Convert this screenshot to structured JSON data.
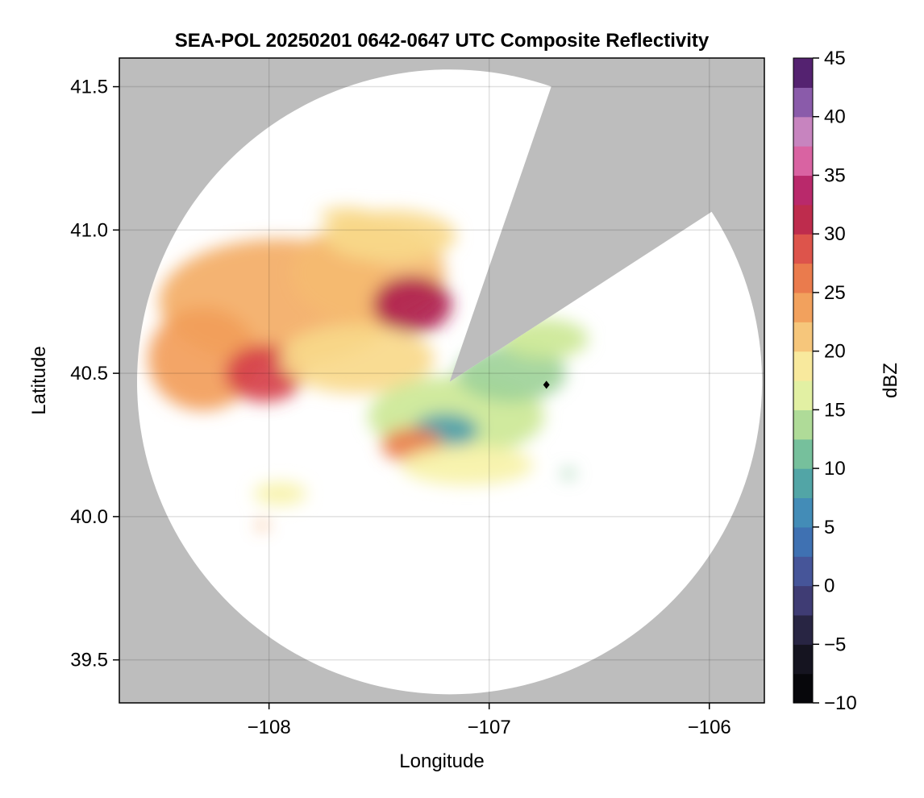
{
  "chart_data": {
    "type": "heatmap",
    "title": "SEA-POL 20250201 0642-0647 UTC Composite Reflectivity",
    "xlabel": "Longitude",
    "ylabel": "Latitude",
    "xlim": [
      -108.68,
      -105.75
    ],
    "ylim": [
      39.35,
      41.6
    ],
    "x_ticks": [
      {
        "value": -108,
        "label": "−108"
      },
      {
        "value": -107,
        "label": "−107"
      },
      {
        "value": -106,
        "label": "−106"
      }
    ],
    "y_ticks": [
      {
        "value": 39.5,
        "label": "39.5"
      },
      {
        "value": 40.0,
        "label": "40.0"
      },
      {
        "value": 40.5,
        "label": "40.5"
      },
      {
        "value": 41.0,
        "label": "41.0"
      },
      {
        "value": 41.5,
        "label": "41.5"
      }
    ],
    "grid": true,
    "background_color": "#bdbdbd",
    "no_echo_color": "#ffffff",
    "radar": {
      "lon": -107.18,
      "lat": 40.47,
      "range_deg_lat": 1.09
    },
    "blocked_sectors_deg_from_north": [
      [
        19,
        57
      ]
    ],
    "marker": {
      "lon": -106.74,
      "lat": 40.46,
      "shape": "diamond",
      "color": "#000000"
    },
    "echo_regions": [
      {
        "lon": -107.95,
        "lat": 40.75,
        "rx": 0.55,
        "ry": 0.22,
        "dbz": 23
      },
      {
        "lon": -108.3,
        "lat": 40.55,
        "rx": 0.25,
        "ry": 0.18,
        "dbz": 24
      },
      {
        "lon": -108.02,
        "lat": 40.5,
        "rx": 0.18,
        "ry": 0.1,
        "dbz": 30
      },
      {
        "lon": -107.55,
        "lat": 40.85,
        "rx": 0.35,
        "ry": 0.18,
        "dbz": 22
      },
      {
        "lon": -107.35,
        "lat": 40.74,
        "rx": 0.18,
        "ry": 0.1,
        "dbz": 32
      },
      {
        "lon": -107.45,
        "lat": 40.98,
        "rx": 0.3,
        "ry": 0.09,
        "dbz": 20
      },
      {
        "lon": -107.6,
        "lat": 40.55,
        "rx": 0.35,
        "ry": 0.12,
        "dbz": 20
      },
      {
        "lon": -107.15,
        "lat": 40.35,
        "rx": 0.4,
        "ry": 0.14,
        "dbz": 15
      },
      {
        "lon": -107.2,
        "lat": 40.3,
        "rx": 0.15,
        "ry": 0.06,
        "dbz": 8
      },
      {
        "lon": -107.35,
        "lat": 40.25,
        "rx": 0.14,
        "ry": 0.06,
        "dbz": 26
      },
      {
        "lon": -106.9,
        "lat": 40.5,
        "rx": 0.25,
        "ry": 0.1,
        "dbz": 13
      },
      {
        "lon": -106.75,
        "lat": 40.62,
        "rx": 0.2,
        "ry": 0.07,
        "dbz": 15
      },
      {
        "lon": -107.1,
        "lat": 40.18,
        "rx": 0.3,
        "ry": 0.07,
        "dbz": 18
      },
      {
        "lon": -107.95,
        "lat": 40.08,
        "rx": 0.12,
        "ry": 0.04,
        "dbz": 18
      },
      {
        "lon": -108.03,
        "lat": 39.97,
        "rx": 0.025,
        "ry": 0.015,
        "dbz": 24
      },
      {
        "lon": -106.64,
        "lat": 40.15,
        "rx": 0.03,
        "ry": 0.015,
        "dbz": 12
      },
      {
        "lon": -107.65,
        "lat": 41.05,
        "rx": 0.12,
        "ry": 0.03,
        "dbz": 20
      }
    ],
    "colorbar": {
      "label": "dBZ",
      "range": [
        -10,
        45
      ],
      "ticks": [
        {
          "value": -10,
          "label": "−10"
        },
        {
          "value": -5,
          "label": "−5"
        },
        {
          "value": 0,
          "label": "0"
        },
        {
          "value": 5,
          "label": "5"
        },
        {
          "value": 10,
          "label": "10"
        },
        {
          "value": 15,
          "label": "15"
        },
        {
          "value": 20,
          "label": "20"
        },
        {
          "value": 25,
          "label": "25"
        },
        {
          "value": 30,
          "label": "30"
        },
        {
          "value": 35,
          "label": "35"
        },
        {
          "value": 40,
          "label": "40"
        },
        {
          "value": 45,
          "label": "45"
        }
      ],
      "stops": [
        {
          "value": -10,
          "color": "#000000"
        },
        {
          "value": -5,
          "color": "#1c1a2a"
        },
        {
          "value": 0,
          "color": "#4a478c"
        },
        {
          "value": 5,
          "color": "#3b7fbf"
        },
        {
          "value": 10,
          "color": "#59b29e"
        },
        {
          "value": 15,
          "color": "#cce896"
        },
        {
          "value": 17.5,
          "color": "#f7f8b0"
        },
        {
          "value": 20,
          "color": "#f8d98a"
        },
        {
          "value": 25,
          "color": "#f08e4e"
        },
        {
          "value": 30,
          "color": "#d6404a"
        },
        {
          "value": 32.5,
          "color": "#a5174f"
        },
        {
          "value": 35,
          "color": "#cc3a86"
        },
        {
          "value": 37.5,
          "color": "#e58cbe"
        },
        {
          "value": 40,
          "color": "#a87cc0"
        },
        {
          "value": 42.5,
          "color": "#6c3a93"
        },
        {
          "value": 45,
          "color": "#3b0a4d"
        }
      ]
    }
  }
}
